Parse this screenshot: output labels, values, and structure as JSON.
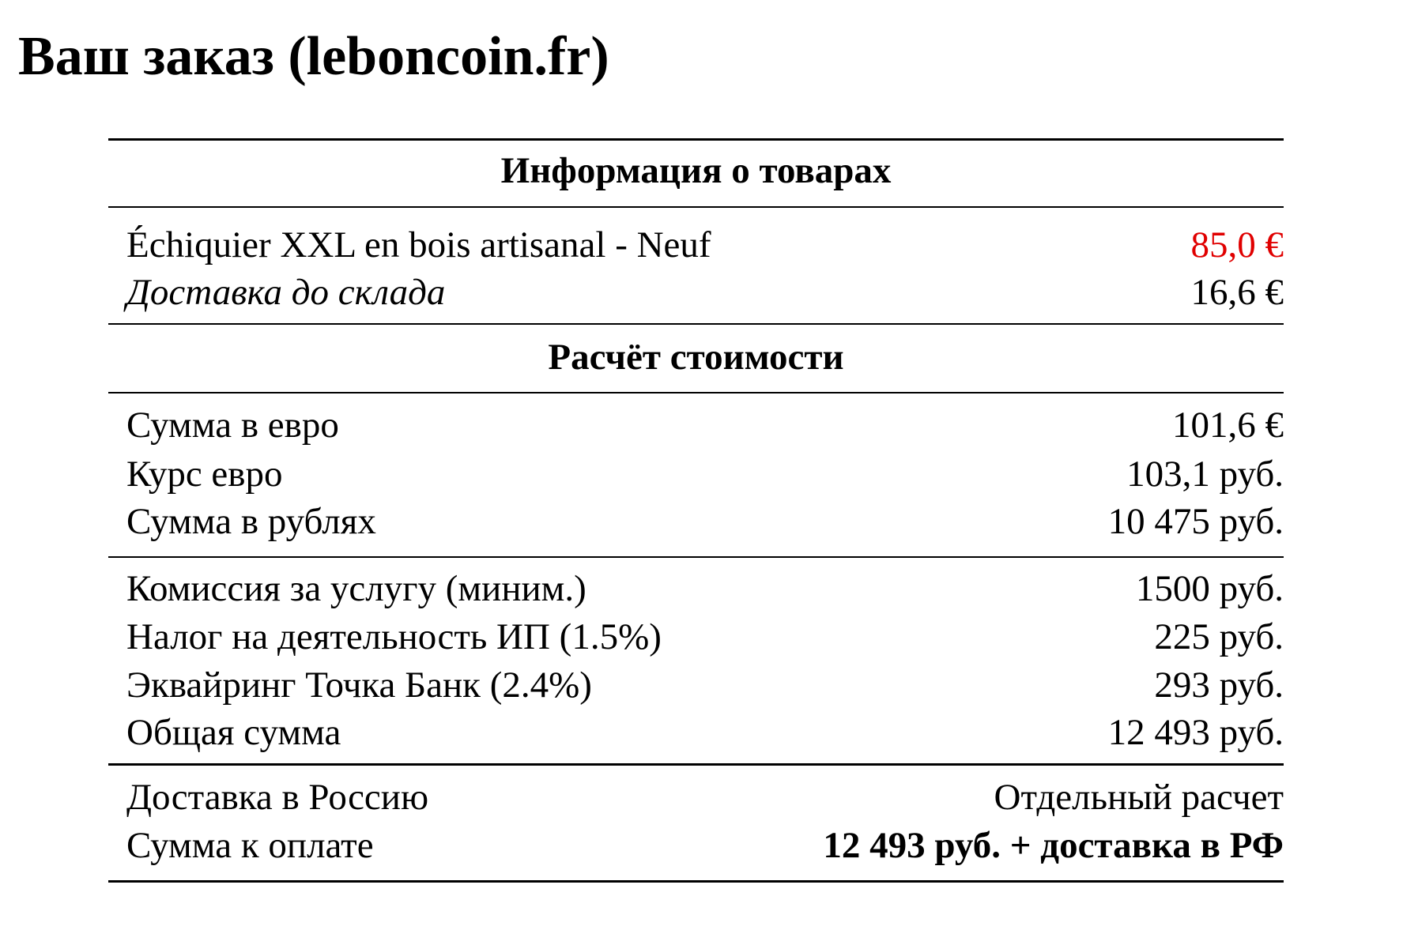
{
  "header": {
    "title": "Ваш заказ (leboncoin.fr)"
  },
  "table": {
    "goods": {
      "heading": "Информация о товарах",
      "rows": [
        [
          "Échiquier XXL en bois artisanal - Neuf",
          "85,0 €"
        ],
        [
          "Доставка до склада",
          "16,6 €"
        ]
      ]
    },
    "calc": {
      "heading": "Расчёт стоимости",
      "groups": [
        [
          [
            "Сумма в евро",
            "101,6 €"
          ],
          [
            "Курс евро",
            "103,1 руб."
          ],
          [
            "Сумма в рублях",
            "10 475 руб."
          ]
        ],
        [
          [
            "Комиссия за услугу (миним.)",
            "1500 руб."
          ],
          [
            "Налог на деятельность ИП (1.5%)",
            "225 руб."
          ],
          [
            "Эквайринг Точка Банк (2.4%)",
            "293 руб."
          ],
          [
            "Общая сумма",
            "12 493 руб."
          ]
        ],
        [
          [
            "Доставка в Россию",
            "Отдельный расчет"
          ],
          [
            "Сумма к оплате",
            "12 493 руб. + доставка в РФ"
          ]
        ]
      ]
    }
  }
}
